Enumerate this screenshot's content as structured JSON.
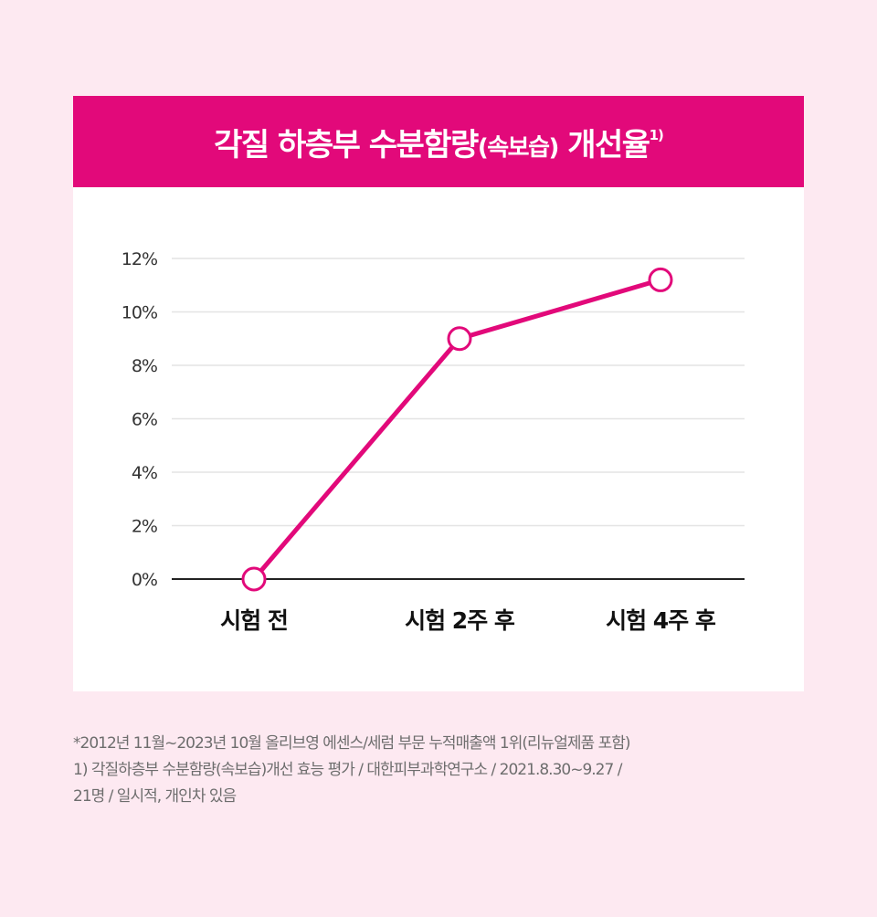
{
  "header": {
    "title_main": "각질 하층부 수분함량",
    "title_paren": "(속보습)",
    "title_end": " 개선율",
    "title_sup": "1)"
  },
  "chart_data": {
    "type": "line",
    "categories": [
      "시험 전",
      "시험 2주 후",
      "시험 4주 후"
    ],
    "values": [
      0,
      9.0,
      11.2
    ],
    "y_ticks": [
      "0%",
      "2%",
      "4%",
      "6%",
      "8%",
      "10%",
      "12%"
    ],
    "ylim": [
      0,
      12
    ],
    "grid": true,
    "line_color": "#e2097a",
    "header_color": "#e2097a",
    "marker_fill": "#ffffff"
  },
  "footnotes": [
    "*2012년 11월~2023년 10월 올리브영 에센스/세럼 부문 누적매출액 1위(리뉴얼제품 포함)",
    "1) 각질하층부 수분함량(속보습)개선 효능 평가 / 대한피부과학연구소 / 2021.8.30~9.27 /",
    "21명 / 일시적, 개인차 있음"
  ]
}
